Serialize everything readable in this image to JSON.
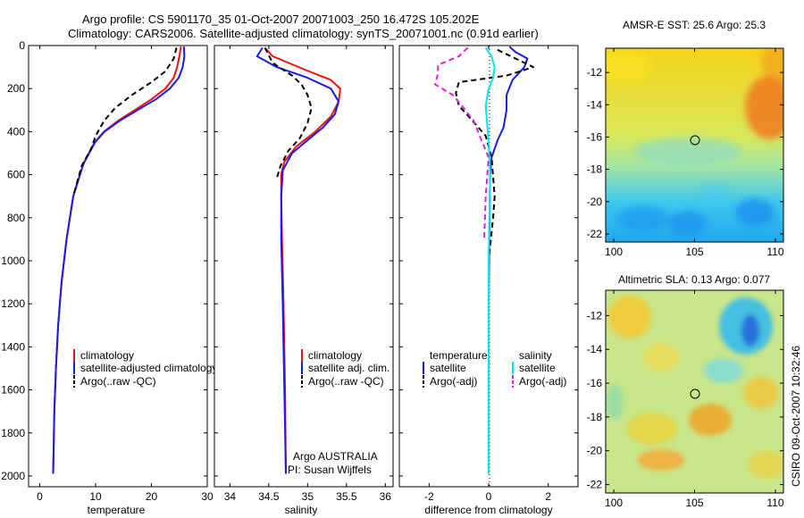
{
  "figure": {
    "title_line1": "Argo profile: CS 5901170_35 01-Oct-2007 20071003_250 16.472S 105.202E",
    "title_line2": "Climatology: CARS2006. Satellite-adjusted climatology: synTS_20071001.nc (0.91d earlier)",
    "side_label": "CSIRO 09-Oct-2007 10:32:46"
  },
  "colors": {
    "climatology": "#ee1111",
    "satellite": "#1a1aee",
    "argo": "#000000",
    "salinity_satellite": "#00e5ee",
    "salinity_argo": "#dd22dd"
  },
  "chart_data": [
    {
      "id": "temperature",
      "type": "line",
      "xlabel": "temperature",
      "xlim": [
        -2,
        30
      ],
      "xticks": [
        "0",
        "10",
        "20",
        "30"
      ],
      "ylim": [
        2050,
        0
      ],
      "yticks": [
        "0",
        "200",
        "400",
        "600",
        "800",
        "1000",
        "1200",
        "1400",
        "1600",
        "1800",
        "2000"
      ],
      "legend": [
        {
          "label": "climatology",
          "series": "climatology"
        },
        {
          "label": "satellite-adjusted climatology",
          "series": "satellite"
        },
        {
          "label": "Argo(..raw -QC)",
          "series": "argo"
        }
      ],
      "series": [
        {
          "name": "climatology",
          "color": "#ee1111",
          "dash": false,
          "x": [
            25.3,
            25.0,
            24.6,
            24.0,
            22.5,
            20.0,
            17.0,
            14.0,
            11.5,
            9.8,
            7.8,
            6.0,
            4.8,
            3.9,
            3.3,
            2.9,
            2.6,
            2.4
          ],
          "y": [
            5,
            50,
            100,
            150,
            200,
            250,
            300,
            350,
            400,
            450,
            550,
            700,
            900,
            1100,
            1300,
            1500,
            1700,
            1990
          ]
        },
        {
          "name": "satellite",
          "color": "#1a1aee",
          "dash": false,
          "x": [
            25.8,
            25.9,
            25.6,
            24.9,
            23.3,
            20.8,
            17.5,
            14.3,
            11.6,
            9.9,
            7.8,
            6.0,
            4.8,
            3.9,
            3.3,
            2.9,
            2.6,
            2.4
          ],
          "y": [
            5,
            50,
            100,
            150,
            200,
            250,
            300,
            350,
            400,
            450,
            550,
            700,
            900,
            1100,
            1300,
            1500,
            1700,
            1990
          ]
        },
        {
          "name": "argo",
          "color": "#000000",
          "dash": true,
          "x": [
            24.5,
            24.0,
            22.5,
            20.0,
            16.5,
            13.5,
            11.5,
            10.0,
            9.2,
            7.5,
            6.0
          ],
          "y": [
            10,
            60,
            120,
            170,
            230,
            290,
            350,
            420,
            480,
            560,
            700
          ]
        }
      ]
    },
    {
      "id": "salinity",
      "type": "line",
      "xlabel": "salinity",
      "xlim": [
        33.8,
        36.1
      ],
      "xticks": [
        "34",
        "34.5",
        "35",
        "35.5",
        "36"
      ],
      "ylim": [
        2050,
        0
      ],
      "legend": [
        {
          "label": "climatology",
          "series": "climatology"
        },
        {
          "label": "satellite adj. clim.",
          "series": "satellite"
        },
        {
          "label": "Argo(..raw -QC)",
          "series": "argo"
        }
      ],
      "annotations": [
        "Argo AUSTRALIA",
        "PI: Susan Wijffels"
      ],
      "series": [
        {
          "name": "climatology",
          "color": "#ee1111",
          "dash": false,
          "x": [
            34.45,
            34.55,
            34.95,
            35.3,
            35.42,
            35.4,
            35.3,
            35.1,
            34.85,
            34.7,
            34.66,
            34.66,
            34.67,
            34.69,
            34.71,
            34.72
          ],
          "y": [
            10,
            50,
            110,
            160,
            200,
            260,
            330,
            400,
            470,
            540,
            600,
            700,
            900,
            1200,
            1600,
            1990
          ]
        },
        {
          "name": "satellite",
          "color": "#1a1aee",
          "dash": false,
          "x": [
            34.42,
            34.35,
            34.6,
            35.0,
            35.3,
            35.4,
            35.35,
            35.2,
            35.0,
            34.8,
            34.68,
            34.66,
            34.66,
            34.68,
            34.7,
            34.72
          ],
          "y": [
            10,
            50,
            100,
            150,
            200,
            260,
            320,
            380,
            440,
            500,
            580,
            700,
            900,
            1200,
            1600,
            1990
          ]
        },
        {
          "name": "argo",
          "color": "#000000",
          "dash": true,
          "x": [
            34.45,
            34.55,
            34.8,
            34.92,
            35.0,
            35.05,
            35.0,
            34.9,
            34.75,
            34.65,
            34.6
          ],
          "y": [
            10,
            80,
            140,
            180,
            230,
            290,
            360,
            430,
            490,
            560,
            620
          ]
        }
      ]
    },
    {
      "id": "difference",
      "type": "line",
      "xlabel": "difference from climatology",
      "xlim": [
        -3,
        3
      ],
      "xticks": [
        "-2",
        "0",
        "2"
      ],
      "ylim": [
        2050,
        0
      ],
      "legend_headers": [
        "temperature",
        "salinity"
      ],
      "legend": [
        {
          "label": "satellite",
          "series": "temp_satellite"
        },
        {
          "label": "Argo(-adj)",
          "series": "temp_argo"
        },
        {
          "label": "satellite",
          "series": "sal_satellite"
        },
        {
          "label": "Argo(-adj)",
          "series": "sal_argo"
        }
      ],
      "series": [
        {
          "name": "temp_satellite",
          "color": "#1a1aee",
          "dash": false,
          "x": [
            0.7,
            0.9,
            1.3,
            1.2,
            0.8,
            0.6,
            0.6,
            0.5,
            0.3,
            0.1,
            0.05,
            0.03,
            0.0,
            0.0
          ],
          "y": [
            5,
            30,
            60,
            100,
            160,
            230,
            300,
            380,
            440,
            520,
            600,
            800,
            1200,
            1990
          ]
        },
        {
          "name": "temp_argo",
          "color": "#000000",
          "dash": true,
          "x": [
            0.3,
            0.9,
            1.5,
            0.6,
            -1.0,
            -1.1,
            -1.0,
            -0.6,
            -0.1,
            0.1,
            0.2,
            0.15,
            0.0
          ],
          "y": [
            20,
            60,
            100,
            140,
            170,
            220,
            280,
            340,
            420,
            520,
            700,
            800,
            1000
          ]
        },
        {
          "name": "sal_satellite",
          "color": "#00e5ee",
          "dash": false,
          "x": [
            -0.1,
            0.1,
            0.2,
            0.15,
            0.0,
            -0.1,
            -0.05,
            0.0,
            0.05,
            0.0,
            0.0
          ],
          "y": [
            10,
            50,
            100,
            150,
            200,
            280,
            360,
            450,
            600,
            1000,
            1990
          ]
        },
        {
          "name": "sal_argo",
          "color": "#dd22dd",
          "dash": true,
          "x": [
            -0.7,
            -1.0,
            -1.7,
            -1.7,
            -1.8,
            -1.2,
            -0.9,
            -0.5,
            -0.3,
            0.0,
            -0.1,
            -0.15
          ],
          "y": [
            10,
            50,
            90,
            130,
            180,
            230,
            280,
            350,
            420,
            520,
            700,
            900
          ]
        }
      ]
    },
    {
      "id": "sst_map",
      "type": "heatmap",
      "title": "AMSR-E SST: 25.6 Argo: 25.3",
      "xticks": [
        "100",
        "105",
        "110"
      ],
      "yticks": [
        "-12",
        "-14",
        "-16",
        "-18",
        "-20",
        "-22"
      ],
      "xlim": [
        99.5,
        110.5
      ],
      "ylim": [
        -22.5,
        -10.5
      ],
      "marker": {
        "lon": 105.2,
        "lat": -16.47
      }
    },
    {
      "id": "sla_map",
      "type": "heatmap",
      "title": "Altimetric SLA: 0.13 Argo: 0.077",
      "xticks": [
        "100",
        "105",
        "110"
      ],
      "yticks": [
        "-12",
        "-14",
        "-16",
        "-18",
        "-20",
        "-22"
      ],
      "xlim": [
        99.5,
        110.5
      ],
      "ylim": [
        -22.5,
        -10.5
      ],
      "marker": {
        "lon": 105.2,
        "lat": -16.47
      }
    }
  ]
}
